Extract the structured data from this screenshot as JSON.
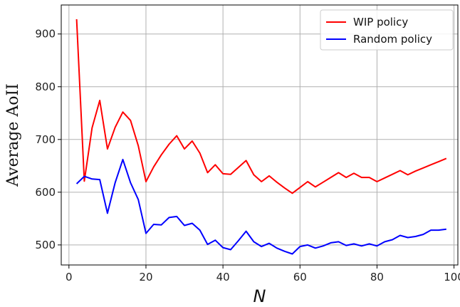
{
  "chart_data": {
    "type": "line",
    "xlabel": "N",
    "ylabel": "Average AoII",
    "xlim": [
      -2,
      101
    ],
    "ylim": [
      462,
      955
    ],
    "xticks": [
      0,
      20,
      40,
      60,
      80,
      100
    ],
    "yticks": [
      500,
      600,
      700,
      800,
      900
    ],
    "grid": true,
    "legend_position": "top-right",
    "series": [
      {
        "name": "WIP policy",
        "color": "#ff0000",
        "x": [
          2,
          4,
          6,
          8,
          10,
          12,
          14,
          16,
          18,
          20,
          22,
          24,
          26,
          28,
          30,
          32,
          34,
          36,
          38,
          40,
          42,
          44,
          46,
          48,
          50,
          52,
          54,
          56,
          58,
          60,
          62,
          64,
          66,
          68,
          70,
          72,
          74,
          76,
          78,
          80,
          82,
          84,
          86,
          88,
          90,
          92,
          94,
          96,
          98
        ],
        "y": [
          928,
          621,
          722,
          774,
          682,
          723,
          752,
          736,
          688,
          620,
          648,
          671,
          691,
          707,
          682,
          697,
          674,
          637,
          652,
          635,
          634,
          647,
          660,
          633,
          620,
          631,
          619,
          608,
          598,
          609,
          620,
          610,
          619,
          628,
          637,
          628,
          636,
          628,
          628,
          620,
          627,
          634,
          641,
          633,
          640,
          646,
          652,
          658,
          664
        ]
      },
      {
        "name": "Random policy",
        "color": "#0000ff",
        "x": [
          2,
          4,
          6,
          8,
          10,
          12,
          14,
          16,
          18,
          20,
          22,
          24,
          26,
          28,
          30,
          32,
          34,
          36,
          38,
          40,
          42,
          44,
          46,
          48,
          50,
          52,
          54,
          56,
          58,
          60,
          62,
          64,
          66,
          68,
          70,
          72,
          74,
          76,
          78,
          80,
          82,
          84,
          86,
          88,
          90,
          92,
          94,
          96,
          98
        ],
        "y": [
          616,
          630,
          625,
          624,
          560,
          618,
          662,
          618,
          586,
          522,
          539,
          538,
          552,
          554,
          537,
          541,
          528,
          501,
          509,
          495,
          491,
          508,
          526,
          506,
          497,
          503,
          494,
          488,
          483,
          497,
          500,
          494,
          498,
          504,
          506,
          499,
          502,
          498,
          502,
          498,
          506,
          510,
          518,
          514,
          516,
          520,
          528,
          528,
          530
        ]
      }
    ]
  }
}
